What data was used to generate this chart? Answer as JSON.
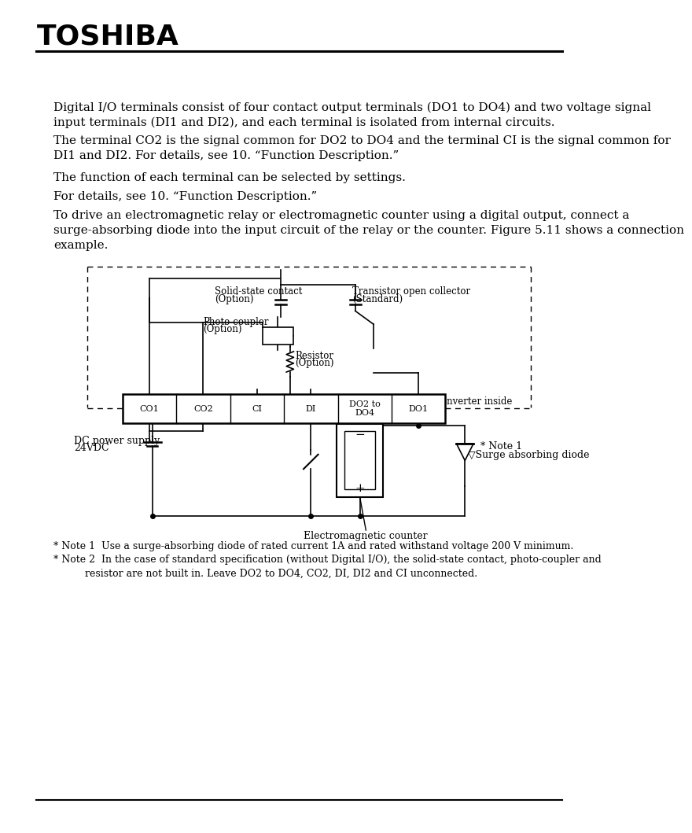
{
  "title": "TOSHIBA",
  "paragraph1": "Digital I/O terminals consist of four contact output terminals (DO1 to DO4) and two voltage signal\ninput terminals (DI1 and DI2), and each terminal is isolated from internal circuits.",
  "paragraph2": "The terminal CO2 is the signal common for DO2 to DO4 and the terminal CI is the signal common for\nDI1 and DI2. For details, see 10. “Function Description.”",
  "paragraph3": "The function of each terminal can be selected by settings.",
  "paragraph4": "For details, see 10. “Function Description.”",
  "paragraph5": "To drive an electromagnetic relay or electromagnetic counter using a digital output, connect a\nsurge-absorbing diode into the input circuit of the relay or the counter. Figure 5.11 shows a connection\nexample.",
  "note1": "* Note 1  Use a surge-absorbing diode of rated current 1A and rated withstand voltage 200 V minimum.",
  "note2": "* Note 2  In the case of standard specification (without Digital I/O), the solid-state contact, photo-coupler and\n          resistor are not built in. Leave DO2 to DO4, CO2, DI, DI2 and CI unconnected.",
  "bg_color": "#ffffff",
  "line_color": "#000000"
}
